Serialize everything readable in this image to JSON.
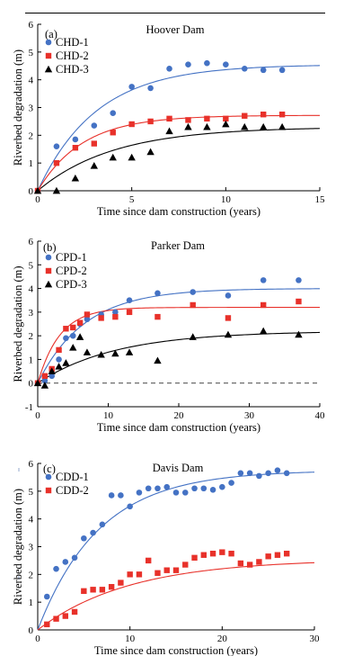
{
  "colors": {
    "blue": "#4472c4",
    "red": "#e8312a",
    "black": "#000000"
  },
  "chart_data": [
    {
      "type": "scatter",
      "panel_label": "(a)",
      "title": "Hoover Dam",
      "xlabel": "Time since dam construction (years)",
      "ylabel": "Riverbed degradation (m)",
      "xlim": [
        0,
        15
      ],
      "ylim": [
        0,
        6
      ],
      "xticks": [
        "0",
        "5",
        "10",
        "15"
      ],
      "yticks": [
        "0",
        "1",
        "2",
        "3",
        "4",
        "5",
        "6"
      ],
      "legend_position": "top-left",
      "series": [
        {
          "name": "CHD-1",
          "marker": "circle",
          "color": "#4472c4",
          "x": [
            0,
            1,
            2,
            3,
            4,
            5,
            6,
            7,
            8,
            9,
            10,
            11,
            12,
            13
          ],
          "y": [
            0,
            1.6,
            1.85,
            2.35,
            2.8,
            3.75,
            3.7,
            4.4,
            4.55,
            4.6,
            4.55,
            4.4,
            4.35,
            4.35
          ],
          "fit": {
            "a": 4.55,
            "k": 0.32
          }
        },
        {
          "name": "CHD-2",
          "marker": "square",
          "color": "#e8312a",
          "x": [
            0,
            1,
            2,
            3,
            4,
            5,
            6,
            7,
            8,
            9,
            10,
            11,
            12,
            13
          ],
          "y": [
            0,
            1.0,
            1.55,
            1.7,
            2.1,
            2.4,
            2.5,
            2.6,
            2.55,
            2.6,
            2.6,
            2.7,
            2.75,
            2.75
          ],
          "fit": {
            "a": 2.72,
            "k": 0.42
          }
        },
        {
          "name": "CHD-3",
          "marker": "triangle",
          "color": "#000000",
          "x": [
            0,
            1,
            2,
            3,
            4,
            5,
            6,
            7,
            8,
            9,
            10,
            11,
            12,
            13
          ],
          "y": [
            0,
            0,
            0.45,
            0.9,
            1.2,
            1.2,
            1.4,
            2.15,
            2.3,
            2.3,
            2.4,
            2.3,
            2.3,
            2.3
          ],
          "fit": {
            "a": 2.3,
            "k": 0.25
          }
        }
      ]
    },
    {
      "type": "scatter",
      "panel_label": "(b)",
      "title": "Parker Dam",
      "xlabel": "Time since dam construction (years)",
      "ylabel": "Riverbed degradation (m)",
      "xlim": [
        0,
        40
      ],
      "ylim": [
        -1,
        6
      ],
      "xticks": [
        "0",
        "10",
        "20",
        "30",
        "40"
      ],
      "yticks": [
        "-1",
        "0",
        "1",
        "2",
        "3",
        "4",
        "5",
        "6"
      ],
      "reference_line": {
        "y": 0,
        "style": "dashed"
      },
      "legend_position": "top-left",
      "series": [
        {
          "name": "CPD-1",
          "marker": "circle",
          "color": "#4472c4",
          "x": [
            0,
            1,
            2,
            3,
            4,
            5,
            6,
            7,
            9,
            11,
            13,
            17,
            22,
            27,
            32,
            37
          ],
          "y": [
            0,
            0.1,
            0.3,
            1.0,
            1.9,
            2.0,
            2.5,
            2.7,
            2.9,
            3.0,
            3.5,
            3.8,
            3.85,
            3.7,
            4.35,
            4.35
          ],
          "fit": {
            "a": 4.0,
            "k": 0.15
          }
        },
        {
          "name": "CPD-2",
          "marker": "square",
          "color": "#e8312a",
          "x": [
            0,
            1,
            2,
            3,
            4,
            5,
            6,
            7,
            9,
            11,
            13,
            17,
            22,
            27,
            32,
            37
          ],
          "y": [
            0,
            0.3,
            0.6,
            1.4,
            2.3,
            2.35,
            2.55,
            2.9,
            2.75,
            2.8,
            3.0,
            2.8,
            3.3,
            2.75,
            3.3,
            3.45
          ],
          "fit": {
            "a": 3.2,
            "k": 0.32
          }
        },
        {
          "name": "CPD-3",
          "marker": "triangle",
          "color": "#000000",
          "x": [
            0,
            1,
            2,
            3,
            4,
            5,
            6,
            7,
            9,
            11,
            13,
            17,
            22,
            27,
            32,
            37
          ],
          "y": [
            0,
            -0.1,
            0.5,
            0.7,
            0.85,
            1.5,
            1.95,
            1.3,
            1.2,
            1.25,
            1.3,
            0.95,
            1.95,
            2.05,
            2.2,
            2.05
          ],
          "fit": {
            "a": 2.2,
            "k": 0.09
          }
        }
      ]
    },
    {
      "type": "scatter",
      "panel_label": "(c)",
      "title": "Davis Dam",
      "xlabel": "Time since dam construction (years)",
      "ylabel": "Riverbed degradation (m)",
      "xlim": [
        0,
        30
      ],
      "ylim": [
        0,
        6
      ],
      "xticks": [
        "0",
        "10",
        "20",
        "30"
      ],
      "yticks": [
        "0",
        "1",
        "2",
        "3",
        "4",
        "5",
        "6"
      ],
      "legend_position": "top-left",
      "series": [
        {
          "name": "CDD-1",
          "marker": "circle",
          "color": "#4472c4",
          "x": [
            1,
            2,
            3,
            4,
            5,
            6,
            7,
            8,
            9,
            10,
            11,
            12,
            13,
            14,
            15,
            16,
            17,
            18,
            19,
            20,
            21,
            22,
            23,
            24,
            25,
            26,
            27
          ],
          "y": [
            1.2,
            2.2,
            2.45,
            2.6,
            3.3,
            3.5,
            3.8,
            4.85,
            4.85,
            4.45,
            4.95,
            5.1,
            5.1,
            5.15,
            4.95,
            4.95,
            5.1,
            5.1,
            5.05,
            5.15,
            5.3,
            5.65,
            5.65,
            5.55,
            5.65,
            5.75,
            5.65
          ],
          "fit": {
            "a": 5.75,
            "k": 0.15
          }
        },
        {
          "name": "CDD-2",
          "marker": "square",
          "color": "#e8312a",
          "x": [
            1,
            2,
            3,
            4,
            5,
            6,
            7,
            8,
            9,
            10,
            11,
            12,
            13,
            14,
            15,
            16,
            17,
            18,
            19,
            20,
            21,
            22,
            23,
            24,
            25,
            26,
            27
          ],
          "y": [
            0.2,
            0.4,
            0.5,
            0.65,
            1.4,
            1.45,
            1.45,
            1.55,
            1.7,
            2.0,
            2.0,
            2.5,
            2.05,
            2.15,
            2.15,
            2.35,
            2.6,
            2.7,
            2.75,
            2.8,
            2.75,
            2.4,
            2.35,
            2.45,
            2.65,
            2.7,
            2.75
          ],
          "fit": {
            "a": 2.55,
            "k": 0.1
          }
        }
      ]
    }
  ]
}
